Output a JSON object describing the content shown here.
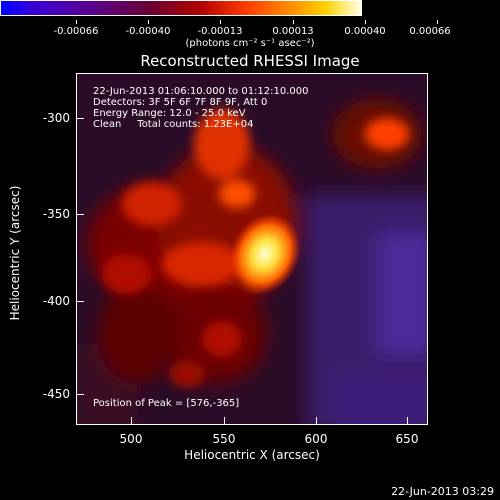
{
  "colorbar": {
    "tick_labels": [
      "-0.00066",
      "-0.00040",
      "-0.00013",
      "0.00013",
      "0.00040",
      "0.00066"
    ],
    "units": "(photons cm⁻² s⁻¹ asec⁻²)"
  },
  "title": "Reconstructed RHESSI Image",
  "info": {
    "line1": "22-Jun-2013 01:06:10.000 to 01:12:10.000",
    "line2": "Detectors: 3F 5F 6F 7F 8F 9F, Att 0",
    "line3": "Energy Range: 12.0 - 25.0 keV",
    "line4": "Clean     Total counts: 1.23E+04",
    "peak": "Position of Peak = [576,-365]"
  },
  "axes": {
    "x_ticks": [
      "500",
      "550",
      "600",
      "650"
    ],
    "y_ticks": [
      "-300",
      "-350",
      "-400",
      "-450"
    ],
    "xlabel": "Heliocentric X (arcsec)",
    "ylabel": "Heliocentric Y (arcsec)"
  },
  "timestamp": "22-Jun-2013 03:29",
  "colors": {
    "bright": "#ffff80",
    "mid": "#ff6a00",
    "low": "#6b0000",
    "neg": "#5a2a9a"
  }
}
